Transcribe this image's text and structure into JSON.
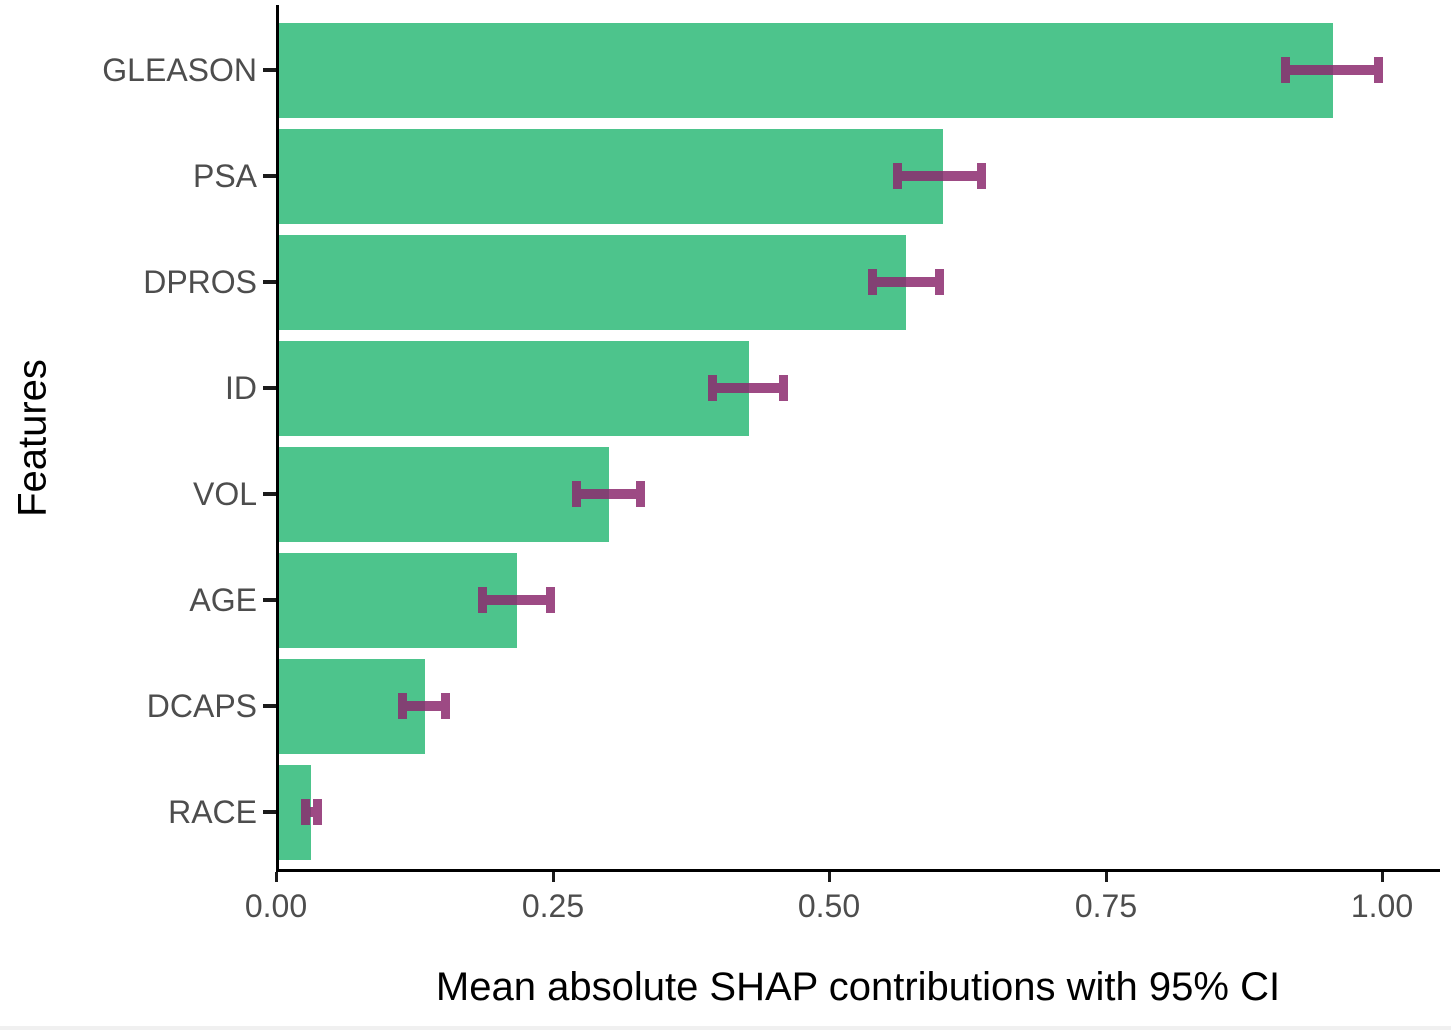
{
  "colors": {
    "bar_fill": "#4dc48c",
    "errorbar": "rgba(140, 42, 110, 0.85)",
    "axis_line": "#000000",
    "tick_label": "#4d4d4d",
    "title_text": "#000000"
  },
  "chart_data": {
    "type": "bar",
    "orientation": "horizontal",
    "title": "",
    "xlabel": "Mean absolute SHAP contributions with 95% CI",
    "ylabel": "Features",
    "categories": [
      "GLEASON",
      "PSA",
      "DPROS",
      "ID",
      "VOL",
      "AGE",
      "DCAPS",
      "RACE"
    ],
    "values": [
      0.953,
      0.6,
      0.567,
      0.425,
      0.298,
      0.215,
      0.132,
      0.029
    ],
    "ci_low": [
      0.906,
      0.555,
      0.533,
      0.388,
      0.265,
      0.18,
      0.108,
      0.02
    ],
    "ci_high": [
      0.998,
      0.639,
      0.602,
      0.46,
      0.331,
      0.25,
      0.155,
      0.039
    ],
    "x_ticks": [
      0,
      0.25,
      0.5,
      0.75,
      1.0
    ],
    "x_tick_labels": [
      "0.00",
      "0.25",
      "0.50",
      "0.75",
      "1.00"
    ],
    "xlim": [
      0,
      1.05
    ],
    "grid": "off",
    "legend": "none",
    "error_bar_note": "95% confidence interval"
  }
}
